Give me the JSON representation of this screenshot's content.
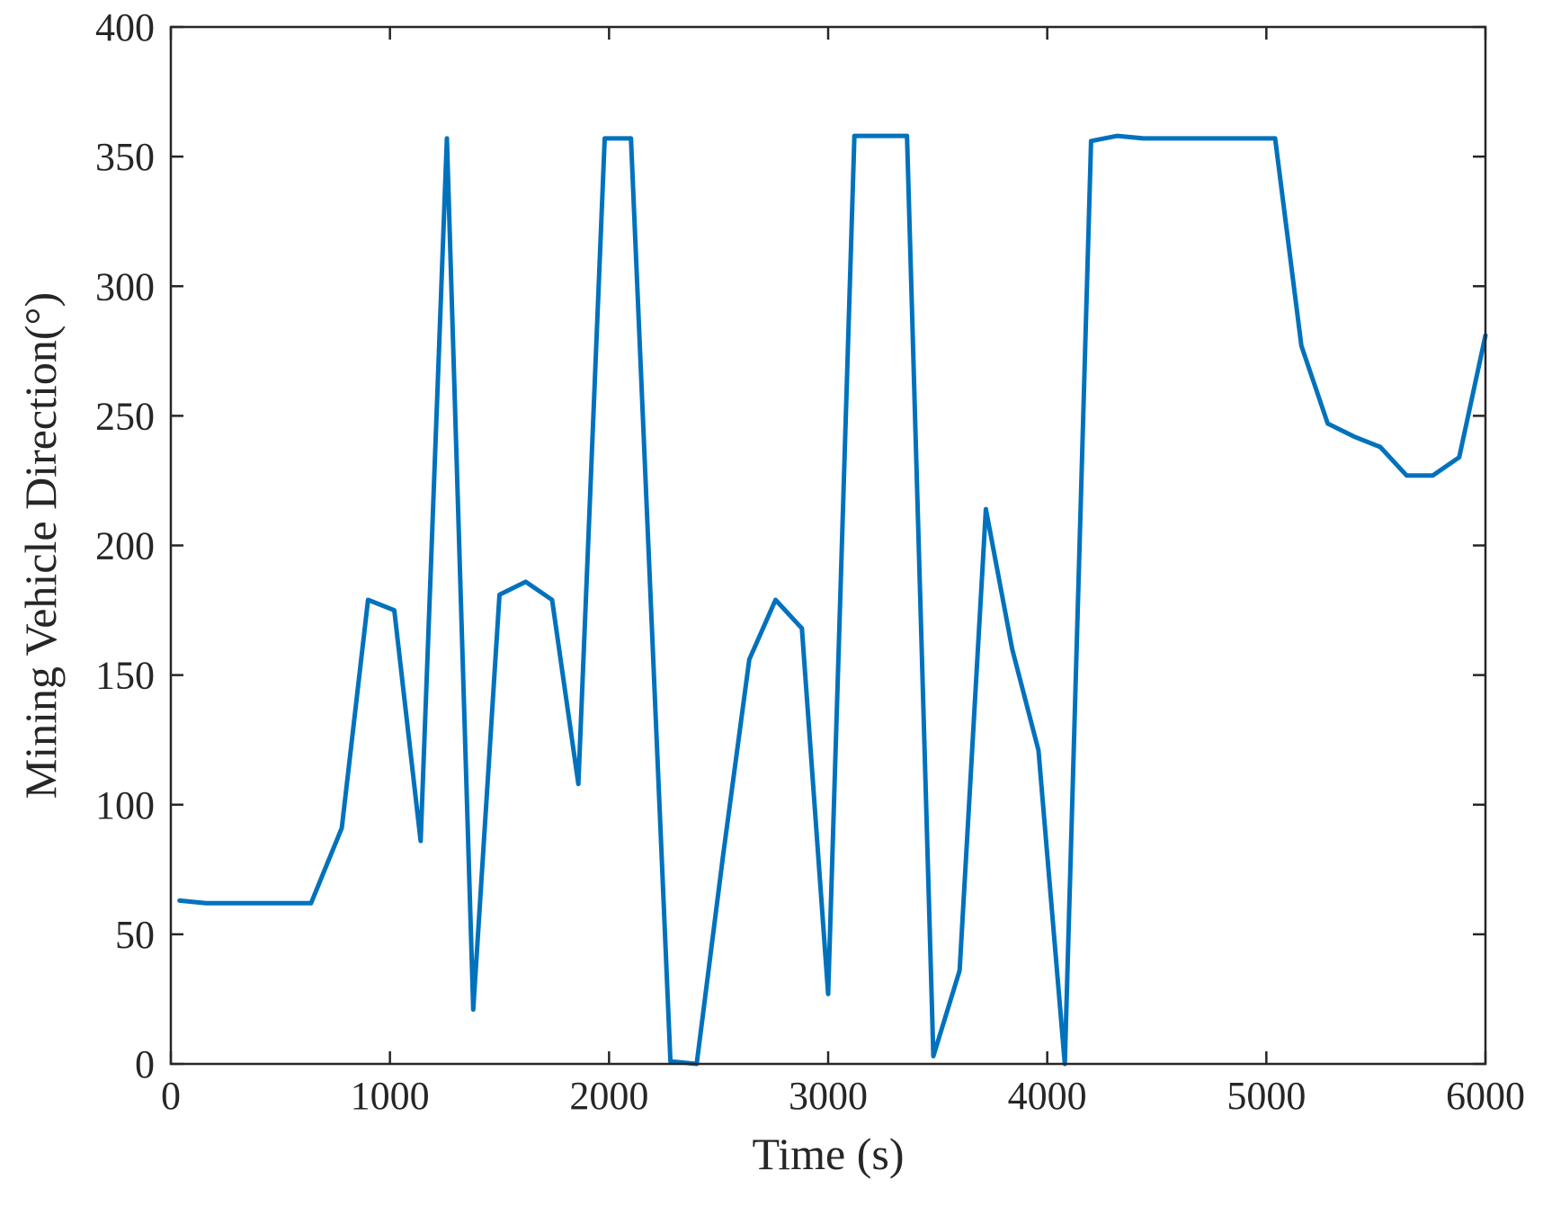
{
  "chart_data": {
    "type": "line",
    "title": "",
    "xlabel": "Time (s)",
    "ylabel": "Mining Vehicle Direction(°)",
    "xlim": [
      0,
      6000
    ],
    "ylim": [
      0,
      400
    ],
    "xticks": [
      0,
      1000,
      2000,
      3000,
      4000,
      5000,
      6000
    ],
    "yticks": [
      0,
      50,
      100,
      150,
      200,
      250,
      300,
      350,
      400
    ],
    "xtick_labels": [
      "0",
      "1000",
      "2000",
      "3000",
      "4000",
      "5000",
      "6000"
    ],
    "ytick_labels": [
      "0",
      "50",
      "100",
      "150",
      "200",
      "250",
      "300",
      "350",
      "400"
    ],
    "grid": false,
    "box": true,
    "series": [
      {
        "color": "#0072BD",
        "x": [
          40,
          160,
          280,
          400,
          520,
          640,
          780,
          900,
          1020,
          1140,
          1260,
          1380,
          1500,
          1620,
          1740,
          1860,
          1980,
          2100,
          2280,
          2400,
          2520,
          2640,
          2760,
          2880,
          3000,
          3120,
          3240,
          3360,
          3480,
          3600,
          3720,
          3840,
          3960,
          4080,
          4200,
          4320,
          4440,
          4560,
          4680,
          4800,
          4920,
          5040,
          5160,
          5280,
          5400,
          5520,
          5640,
          5760,
          5880,
          6000
        ],
        "y": [
          63,
          62,
          62,
          62,
          62,
          62,
          91,
          179,
          175,
          86,
          357,
          21,
          181,
          186,
          179,
          108,
          357,
          357,
          1,
          0,
          80,
          156,
          179,
          168,
          27,
          358,
          358,
          358,
          3,
          36,
          214,
          160,
          121,
          0,
          356,
          358,
          357,
          357,
          357,
          357,
          357,
          357,
          277,
          247,
          242,
          238,
          227,
          227,
          234,
          281
        ]
      }
    ]
  }
}
